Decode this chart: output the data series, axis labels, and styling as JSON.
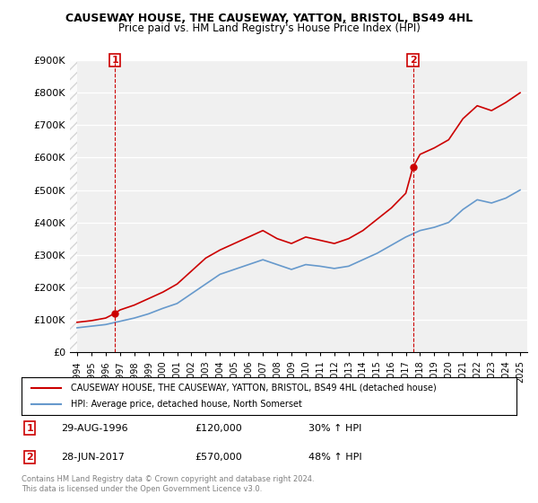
{
  "title": "CAUSEWAY HOUSE, THE CAUSEWAY, YATTON, BRISTOL, BS49 4HL",
  "subtitle": "Price paid vs. HM Land Registry's House Price Index (HPI)",
  "legend_line1": "CAUSEWAY HOUSE, THE CAUSEWAY, YATTON, BRISTOL, BS49 4HL (detached house)",
  "legend_line2": "HPI: Average price, detached house, North Somerset",
  "annotation1_label": "1",
  "annotation1_date": "29-AUG-1996",
  "annotation1_price": "£120,000",
  "annotation1_hpi": "30% ↑ HPI",
  "annotation2_label": "2",
  "annotation2_date": "28-JUN-2017",
  "annotation2_price": "£570,000",
  "annotation2_hpi": "48% ↑ HPI",
  "copyright": "Contains HM Land Registry data © Crown copyright and database right 2024.\nThis data is licensed under the Open Government Licence v3.0.",
  "red_color": "#cc0000",
  "blue_color": "#6699cc",
  "annotation_box_color": "#cc0000",
  "background_color": "#ffffff",
  "plot_bg_color": "#f0f0f0",
  "grid_color": "#ffffff",
  "ylim": [
    0,
    900000
  ],
  "yticks": [
    0,
    100000,
    200000,
    300000,
    400000,
    500000,
    600000,
    700000,
    800000,
    900000
  ],
  "ytick_labels": [
    "£0",
    "£100K",
    "£200K",
    "£300K",
    "£400K",
    "£500K",
    "£600K",
    "£700K",
    "£800K",
    "£900K"
  ],
  "xlim_start": 1993.5,
  "xlim_end": 2025.5,
  "sale1_x": 1996.66,
  "sale1_y": 120000,
  "sale2_x": 2017.5,
  "sale2_y": 570000,
  "hpi_years": [
    1994,
    1995,
    1996,
    1997,
    1998,
    1999,
    2000,
    2001,
    2002,
    2003,
    2004,
    2005,
    2006,
    2007,
    2008,
    2009,
    2010,
    2011,
    2012,
    2013,
    2014,
    2015,
    2016,
    2017,
    2018,
    2019,
    2020,
    2021,
    2022,
    2023,
    2024,
    2025
  ],
  "hpi_values": [
    75000,
    80000,
    85000,
    95000,
    105000,
    118000,
    135000,
    150000,
    180000,
    210000,
    240000,
    255000,
    270000,
    285000,
    270000,
    255000,
    270000,
    265000,
    258000,
    265000,
    285000,
    305000,
    330000,
    355000,
    375000,
    385000,
    400000,
    440000,
    470000,
    460000,
    475000,
    500000
  ],
  "red_years": [
    1994,
    1995,
    1996,
    1996.66,
    1997,
    1998,
    1999,
    2000,
    2001,
    2002,
    2003,
    2004,
    2005,
    2006,
    2007,
    2008,
    2009,
    2010,
    2011,
    2012,
    2013,
    2014,
    2015,
    2016,
    2017,
    2017.5,
    2018,
    2019,
    2020,
    2021,
    2022,
    2023,
    2024,
    2025
  ],
  "red_values": [
    92000,
    97000,
    105000,
    120000,
    130000,
    145000,
    165000,
    185000,
    210000,
    250000,
    290000,
    315000,
    335000,
    355000,
    375000,
    350000,
    335000,
    355000,
    345000,
    335000,
    350000,
    375000,
    410000,
    445000,
    490000,
    570000,
    610000,
    630000,
    655000,
    720000,
    760000,
    745000,
    770000,
    800000
  ]
}
